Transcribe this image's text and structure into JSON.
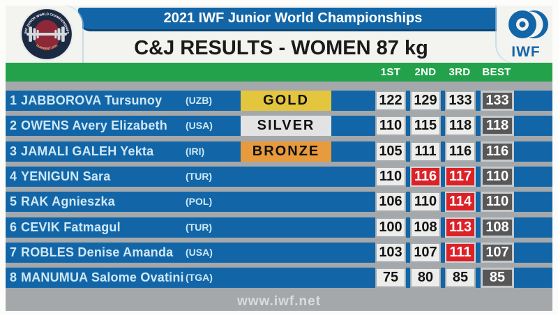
{
  "header": {
    "event_title": "2021 IWF Junior World Championships",
    "page_title": "C&J RESULTS - WOMEN 87 kg",
    "badge_arc_text": "IWF JUNIOR WORLD CHAMPIONSHIPS",
    "badge_bottom_text": "TASHKENT 2021",
    "iwf_logo_text": "IWF"
  },
  "columns": [
    "1ST",
    "2ND",
    "3RD",
    "BEST"
  ],
  "results": [
    {
      "rank": "1",
      "name": "JABBOROVA Tursunoy",
      "country": "(UZB)",
      "medal": "GOLD",
      "attempts": [
        {
          "value": "122",
          "good": true
        },
        {
          "value": "129",
          "good": true
        },
        {
          "value": "133",
          "good": true
        }
      ],
      "best": "133"
    },
    {
      "rank": "2",
      "name": "OWENS Avery Elizabeth",
      "country": "(USA)",
      "medal": "SILVER",
      "attempts": [
        {
          "value": "110",
          "good": true
        },
        {
          "value": "115",
          "good": true
        },
        {
          "value": "118",
          "good": true
        }
      ],
      "best": "118"
    },
    {
      "rank": "3",
      "name": "JAMALI GALEH Yekta",
      "country": "(IRI)",
      "medal": "BRONZE",
      "attempts": [
        {
          "value": "105",
          "good": true
        },
        {
          "value": "111",
          "good": true
        },
        {
          "value": "116",
          "good": true
        }
      ],
      "best": "116"
    },
    {
      "rank": "4",
      "name": "YENIGUN Sara",
      "country": "(TUR)",
      "medal": null,
      "attempts": [
        {
          "value": "110",
          "good": true
        },
        {
          "value": "116",
          "good": false
        },
        {
          "value": "117",
          "good": false
        }
      ],
      "best": "110"
    },
    {
      "rank": "5",
      "name": "RAK Agnieszka",
      "country": "(POL)",
      "medal": null,
      "attempts": [
        {
          "value": "106",
          "good": true
        },
        {
          "value": "110",
          "good": true
        },
        {
          "value": "114",
          "good": false
        }
      ],
      "best": "110"
    },
    {
      "rank": "6",
      "name": "CEVIK Fatmagul",
      "country": "(TUR)",
      "medal": null,
      "attempts": [
        {
          "value": "100",
          "good": true
        },
        {
          "value": "108",
          "good": true
        },
        {
          "value": "113",
          "good": false
        }
      ],
      "best": "108"
    },
    {
      "rank": "7",
      "name": "ROBLES Denise Amanda",
      "country": "(USA)",
      "medal": null,
      "attempts": [
        {
          "value": "103",
          "good": true
        },
        {
          "value": "107",
          "good": true
        },
        {
          "value": "111",
          "good": false
        }
      ],
      "best": "107"
    },
    {
      "rank": "8",
      "name": "MANUMUA Salome Ovatini",
      "country": "(TGA)",
      "medal": null,
      "attempts": [
        {
          "value": "75",
          "good": true
        },
        {
          "value": "80",
          "good": true
        },
        {
          "value": "85",
          "good": true
        }
      ],
      "best": "85"
    }
  ],
  "footer": {
    "url": "www.iwf.net"
  },
  "colors": {
    "bar_blue": "#1266a7",
    "green": "#23a24b",
    "gray_background": "#a4a8ab",
    "good_attempt_cell": "#ededeb",
    "missed_attempt_cell": "#dc2127",
    "best_cell": "#575757",
    "gold": "#e3c63e",
    "silver": "#e3e3e3",
    "bronze": "#e79b3d",
    "name_text": "#cfe8f6"
  }
}
